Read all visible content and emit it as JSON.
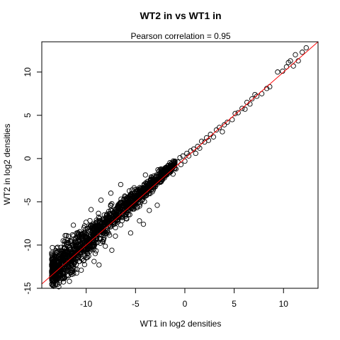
{
  "chart_data": {
    "type": "scatter",
    "title": "WT2 in vs WT1 in",
    "subtitle": "Pearson correlation =  0.95",
    "xlabel": "WT1 in log2 densities",
    "ylabel": "WT2 in log2 densities",
    "xlim": [
      -14.5,
      13.5
    ],
    "ylim": [
      -15,
      13.5
    ],
    "x_ticks": [
      -10,
      -5,
      0,
      5,
      10
    ],
    "y_ticks": [
      -15,
      -10,
      -5,
      0,
      5,
      10
    ],
    "grid": false,
    "marker": "open-circle",
    "fit_line": {
      "slope": 1,
      "intercept": 0,
      "color": "#ff0000"
    },
    "cloud": {
      "description_points": 1400,
      "x_range": [
        -13.5,
        -1
      ],
      "center_line": {
        "slope": 1,
        "intercept": 0
      }
    },
    "series": [
      {
        "values": [
          [
            12.3,
            12.8
          ],
          [
            11.9,
            12.3
          ],
          [
            11.5,
            11.3
          ],
          [
            11.2,
            12.0
          ],
          [
            11.0,
            10.7
          ],
          [
            10.7,
            11.3
          ],
          [
            10.5,
            11.1
          ],
          [
            10.3,
            10.6
          ],
          [
            9.9,
            10.1
          ],
          [
            9.4,
            10.0
          ],
          [
            8.6,
            8.3
          ],
          [
            8.3,
            8.1
          ],
          [
            7.8,
            7.5
          ],
          [
            7.3,
            7.2
          ],
          [
            7.1,
            7.4
          ],
          [
            6.8,
            6.9
          ],
          [
            6.6,
            6.3
          ],
          [
            6.3,
            6.5
          ],
          [
            6.1,
            5.7
          ],
          [
            5.8,
            5.8
          ],
          [
            5.4,
            5.3
          ],
          [
            5.1,
            5.2
          ],
          [
            4.8,
            4.5
          ],
          [
            4.3,
            4.2
          ],
          [
            4.0,
            3.9
          ],
          [
            3.8,
            3.1
          ],
          [
            3.5,
            3.6
          ],
          [
            3.2,
            3.3
          ],
          [
            2.9,
            2.5
          ],
          [
            2.6,
            2.8
          ],
          [
            2.4,
            2.1
          ],
          [
            2.2,
            2.4
          ],
          [
            2.0,
            1.9
          ],
          [
            1.7,
            2.0
          ],
          [
            1.5,
            1.2
          ],
          [
            1.3,
            1.4
          ],
          [
            1.1,
            0.6
          ],
          [
            0.9,
            1.1
          ],
          [
            0.6,
            0.9
          ],
          [
            0.4,
            0.3
          ],
          [
            0.2,
            0.6
          ],
          [
            0.0,
            -0.3
          ],
          [
            -0.2,
            0.3
          ],
          [
            -0.4,
            -0.7
          ],
          [
            -0.5,
            0.1
          ],
          [
            -0.7,
            -0.4
          ],
          [
            -0.9,
            -1.2
          ],
          [
            -1.0,
            -0.3
          ],
          [
            -1.2,
            -1.8
          ],
          [
            -1.4,
            -0.6
          ],
          [
            -4.0,
            -1.9
          ],
          [
            -3.6,
            -6.0
          ],
          [
            -2.8,
            -5.4
          ],
          [
            -4.6,
            -7.2
          ],
          [
            -6.5,
            -3.0
          ],
          [
            -7.5,
            -4.0
          ],
          [
            -8.5,
            -4.8
          ],
          [
            -9.5,
            -5.9
          ],
          [
            -11.3,
            -7.7
          ],
          [
            -12.0,
            -8.9
          ],
          [
            -12.6,
            -13.4
          ],
          [
            -12.9,
            -13.0
          ],
          [
            -12.3,
            -13.9
          ],
          [
            -11.6,
            -13.2
          ],
          [
            -10.5,
            -12.9
          ],
          [
            -9.2,
            -11.9
          ],
          [
            -8.7,
            -12.3
          ],
          [
            -7.4,
            -10.6
          ],
          [
            -5.5,
            -8.6
          ],
          [
            -4.2,
            -7.6
          ]
        ]
      }
    ]
  }
}
